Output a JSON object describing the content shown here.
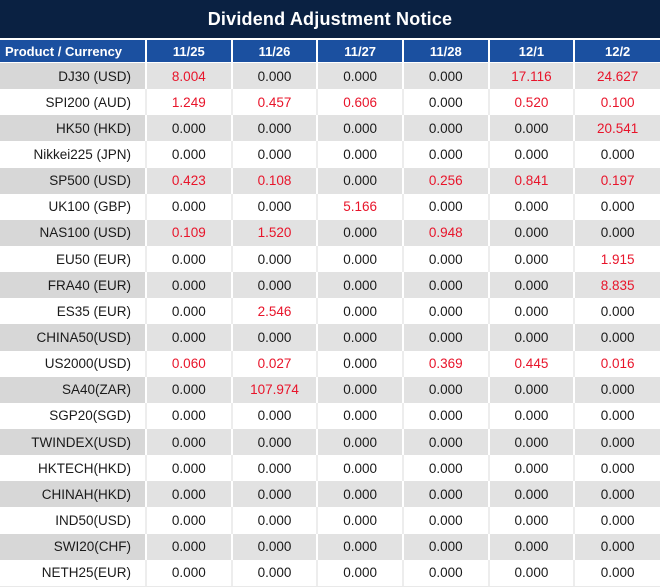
{
  "title": "Dividend Adjustment Notice",
  "table": {
    "header": {
      "product_label": "Product / Currency",
      "dates": [
        "11/25",
        "11/26",
        "11/27",
        "11/28",
        "12/1",
        "12/2"
      ]
    },
    "zero_value": "0.000",
    "rows": [
      {
        "product": "DJ30 (USD)",
        "values": [
          "8.004",
          "0.000",
          "0.000",
          "0.000",
          "17.116",
          "24.627"
        ]
      },
      {
        "product": "SPI200 (AUD)",
        "values": [
          "1.249",
          "0.457",
          "0.606",
          "0.000",
          "0.520",
          "0.100"
        ]
      },
      {
        "product": "HK50 (HKD)",
        "values": [
          "0.000",
          "0.000",
          "0.000",
          "0.000",
          "0.000",
          "20.541"
        ]
      },
      {
        "product": "Nikkei225 (JPN)",
        "values": [
          "0.000",
          "0.000",
          "0.000",
          "0.000",
          "0.000",
          "0.000"
        ]
      },
      {
        "product": "SP500 (USD)",
        "values": [
          "0.423",
          "0.108",
          "0.000",
          "0.256",
          "0.841",
          "0.197"
        ]
      },
      {
        "product": "UK100 (GBP)",
        "values": [
          "0.000",
          "0.000",
          "5.166",
          "0.000",
          "0.000",
          "0.000"
        ]
      },
      {
        "product": "NAS100 (USD)",
        "values": [
          "0.109",
          "1.520",
          "0.000",
          "0.948",
          "0.000",
          "0.000"
        ]
      },
      {
        "product": "EU50 (EUR)",
        "values": [
          "0.000",
          "0.000",
          "0.000",
          "0.000",
          "0.000",
          "1.915"
        ]
      },
      {
        "product": "FRA40 (EUR)",
        "values": [
          "0.000",
          "0.000",
          "0.000",
          "0.000",
          "0.000",
          "8.835"
        ]
      },
      {
        "product": "ES35 (EUR)",
        "values": [
          "0.000",
          "2.546",
          "0.000",
          "0.000",
          "0.000",
          "0.000"
        ]
      },
      {
        "product": "CHINA50(USD)",
        "values": [
          "0.000",
          "0.000",
          "0.000",
          "0.000",
          "0.000",
          "0.000"
        ]
      },
      {
        "product": "US2000(USD)",
        "values": [
          "0.060",
          "0.027",
          "0.000",
          "0.369",
          "0.445",
          "0.016"
        ]
      },
      {
        "product": "SA40(ZAR)",
        "values": [
          "0.000",
          "107.974",
          "0.000",
          "0.000",
          "0.000",
          "0.000"
        ]
      },
      {
        "product": "SGP20(SGD)",
        "values": [
          "0.000",
          "0.000",
          "0.000",
          "0.000",
          "0.000",
          "0.000"
        ]
      },
      {
        "product": "TWINDEX(USD)",
        "values": [
          "0.000",
          "0.000",
          "0.000",
          "0.000",
          "0.000",
          "0.000"
        ]
      },
      {
        "product": "HKTECH(HKD)",
        "values": [
          "0.000",
          "0.000",
          "0.000",
          "0.000",
          "0.000",
          "0.000"
        ]
      },
      {
        "product": "CHINAH(HKD)",
        "values": [
          "0.000",
          "0.000",
          "0.000",
          "0.000",
          "0.000",
          "0.000"
        ]
      },
      {
        "product": "IND50(USD)",
        "values": [
          "0.000",
          "0.000",
          "0.000",
          "0.000",
          "0.000",
          "0.000"
        ]
      },
      {
        "product": "SWI20(CHF)",
        "values": [
          "0.000",
          "0.000",
          "0.000",
          "0.000",
          "0.000",
          "0.000"
        ]
      },
      {
        "product": "NETH25(EUR)",
        "values": [
          "0.000",
          "0.000",
          "0.000",
          "0.000",
          "0.000",
          "0.000"
        ]
      }
    ]
  },
  "colors": {
    "title_bar_bg": "#0a2142",
    "header_bg": "#1b50a0",
    "highlight_value": "#e8142a",
    "text": "#1a1a1a",
    "alt_product_bg": "#d7d7d7",
    "alt_value_bg": "#e2e2e2"
  }
}
